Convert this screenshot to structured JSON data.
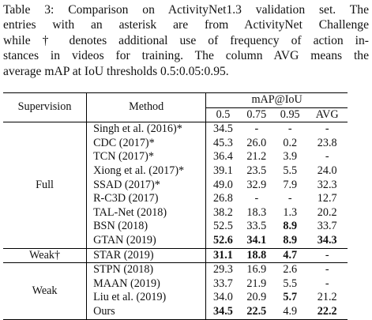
{
  "caption": {
    "lines": [
      "Table 3: Comparison on ActivityNet1.3 validation set. The",
      "entries with an asterisk are from ActivityNet Challenge",
      "while † denotes additional use of frequency of action in-",
      "stances in videos for training. The column AVG means the",
      "average mAP at IoU thresholds 0.5:0.05:0.95."
    ]
  },
  "table": {
    "headers": {
      "supervision": "Supervision",
      "method": "Method",
      "map_group": "mAP@IoU",
      "c1": "0.5",
      "c2": "0.75",
      "c3": "0.95",
      "c4": "AVG"
    },
    "groups": [
      {
        "label": "Full",
        "rows": [
          {
            "method": "Singh et al. (2016)*",
            "v": [
              "34.5",
              "-",
              "-",
              "-"
            ],
            "bold": [
              false,
              false,
              false,
              false
            ]
          },
          {
            "method": "CDC (2017)*",
            "v": [
              "45.3",
              "26.0",
              "0.2",
              "23.8"
            ],
            "bold": [
              false,
              false,
              false,
              false
            ]
          },
          {
            "method": "TCN (2017)*",
            "v": [
              "36.4",
              "21.2",
              "3.9",
              "-"
            ],
            "bold": [
              false,
              false,
              false,
              false
            ]
          },
          {
            "method": "Xiong et al. (2017)*",
            "v": [
              "39.1",
              "23.5",
              "5.5",
              "24.0"
            ],
            "bold": [
              false,
              false,
              false,
              false
            ]
          },
          {
            "method": "SSAD (2017)*",
            "v": [
              "49.0",
              "32.9",
              "7.9",
              "32.3"
            ],
            "bold": [
              false,
              false,
              false,
              false
            ]
          },
          {
            "method": "R-C3D (2017)",
            "v": [
              "26.8",
              "-",
              "-",
              "12.7"
            ],
            "bold": [
              false,
              false,
              false,
              false
            ]
          },
          {
            "method": "TAL-Net (2018)",
            "v": [
              "38.2",
              "18.3",
              "1.3",
              "20.2"
            ],
            "bold": [
              false,
              false,
              false,
              false
            ]
          },
          {
            "method": "BSN (2018)",
            "v": [
              "52.5",
              "33.5",
              "8.9",
              "33.7"
            ],
            "bold": [
              false,
              false,
              true,
              false
            ]
          },
          {
            "method": "GTAN (2019)",
            "v": [
              "52.6",
              "34.1",
              "8.9",
              "34.3"
            ],
            "bold": [
              true,
              true,
              true,
              true
            ]
          }
        ]
      },
      {
        "label": "Weak†",
        "rows": [
          {
            "method": "STAR (2019)",
            "v": [
              "31.1",
              "18.8",
              "4.7",
              "-"
            ],
            "bold": [
              true,
              true,
              true,
              false
            ]
          }
        ]
      },
      {
        "label": "Weak",
        "rows": [
          {
            "method": "STPN (2018)",
            "v": [
              "29.3",
              "16.9",
              "2.6",
              "-"
            ],
            "bold": [
              false,
              false,
              false,
              false
            ]
          },
          {
            "method": "MAAN (2019)",
            "v": [
              "33.7",
              "21.9",
              "5.5",
              "-"
            ],
            "bold": [
              false,
              false,
              false,
              false
            ]
          },
          {
            "method": "Liu et al. (2019)",
            "v": [
              "34.0",
              "20.9",
              "5.7",
              "21.2"
            ],
            "bold": [
              false,
              false,
              true,
              false
            ]
          },
          {
            "method": "Ours",
            "v": [
              "34.5",
              "22.5",
              "4.9",
              "22.2"
            ],
            "bold": [
              true,
              true,
              false,
              true
            ]
          }
        ]
      }
    ]
  }
}
